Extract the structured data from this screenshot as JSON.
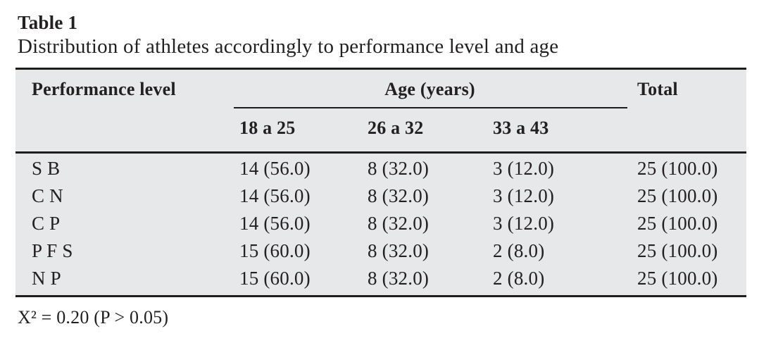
{
  "title": "Table 1",
  "caption": "Distribution of athletes accordingly to performance level and age",
  "table": {
    "performance_header": "Performance level",
    "age_group_header": "Age (years)",
    "total_header": "Total",
    "age_columns": [
      "18 a 25",
      "26 a 32",
      "33 a 43"
    ],
    "rows": [
      {
        "label": "S B",
        "values": [
          "14 (56.0)",
          "8 (32.0)",
          "3 (12.0)",
          "25 (100.0)"
        ]
      },
      {
        "label": "C N",
        "values": [
          "14 (56.0)",
          "8 (32.0)",
          "3 (12.0)",
          "25 (100.0)"
        ]
      },
      {
        "label": "C P",
        "values": [
          "14 (56.0)",
          "8 (32.0)",
          "3 (12.0)",
          "25 (100.0)"
        ]
      },
      {
        "label": "P F S",
        "values": [
          "15 (60.0)",
          "8 (32.0)",
          "2 (8.0)",
          "25 (100.0)"
        ]
      },
      {
        "label": "N P",
        "values": [
          "15 (60.0)",
          "8 (32.0)",
          "2 (8.0)",
          "25 (100.0)"
        ]
      }
    ]
  },
  "footnote": "X² = 0.20 (P > 0.05)",
  "colors": {
    "table_background": "#e7e8e9",
    "rule": "#1d1d1b",
    "text": "#232021",
    "page_background": "#ffffff"
  }
}
